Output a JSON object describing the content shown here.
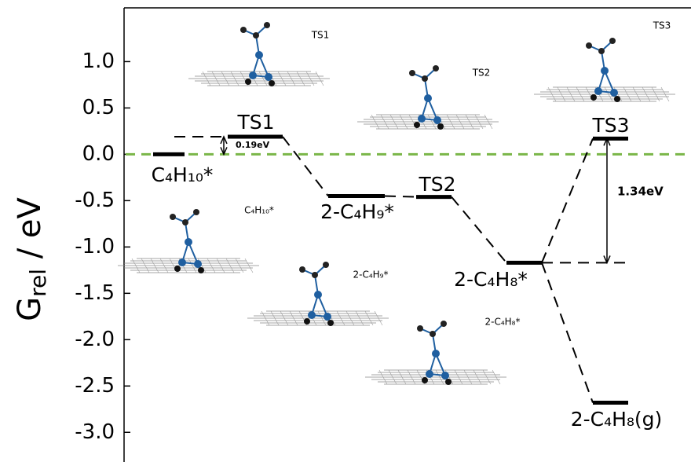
{
  "chart_data": {
    "type": "energy-profile",
    "y_label": {
      "main": "G",
      "sub": "rel",
      "rest": " / eV"
    },
    "categories": [
      "C₄H₁₀*",
      "TS1",
      "2-C₄H₉*",
      "TS2",
      "2-C₄H₈*",
      "TS3",
      "2-C₄H₈(g)"
    ],
    "values": [
      0,
      0.19,
      -0.45,
      -0.46,
      -1.17,
      0.17,
      -2.68
    ],
    "color": "#000000",
    "reference_line": {
      "value": 0,
      "color": "#7ab648"
    },
    "ylim": [
      -3.32,
      1.58
    ],
    "yticks": [
      {
        "value": 1,
        "label": "1.0"
      },
      0.5,
      {
        "value": 0,
        "label": "0.0"
      },
      -0.5,
      {
        "value": -1,
        "label": "-1.0"
      },
      -1.5,
      {
        "value": -2,
        "label": "-2.0"
      },
      -2.5,
      {
        "value": -3,
        "label": "-3.0"
      }
    ],
    "barriers": [
      "0.19eV",
      "1.34eV"
    ],
    "structure_labels": [
      "TS1",
      "TS2",
      "TS3",
      "C₄H₁₀*",
      "2-C₄H₉*",
      "2-C₄H₈*"
    ]
  }
}
